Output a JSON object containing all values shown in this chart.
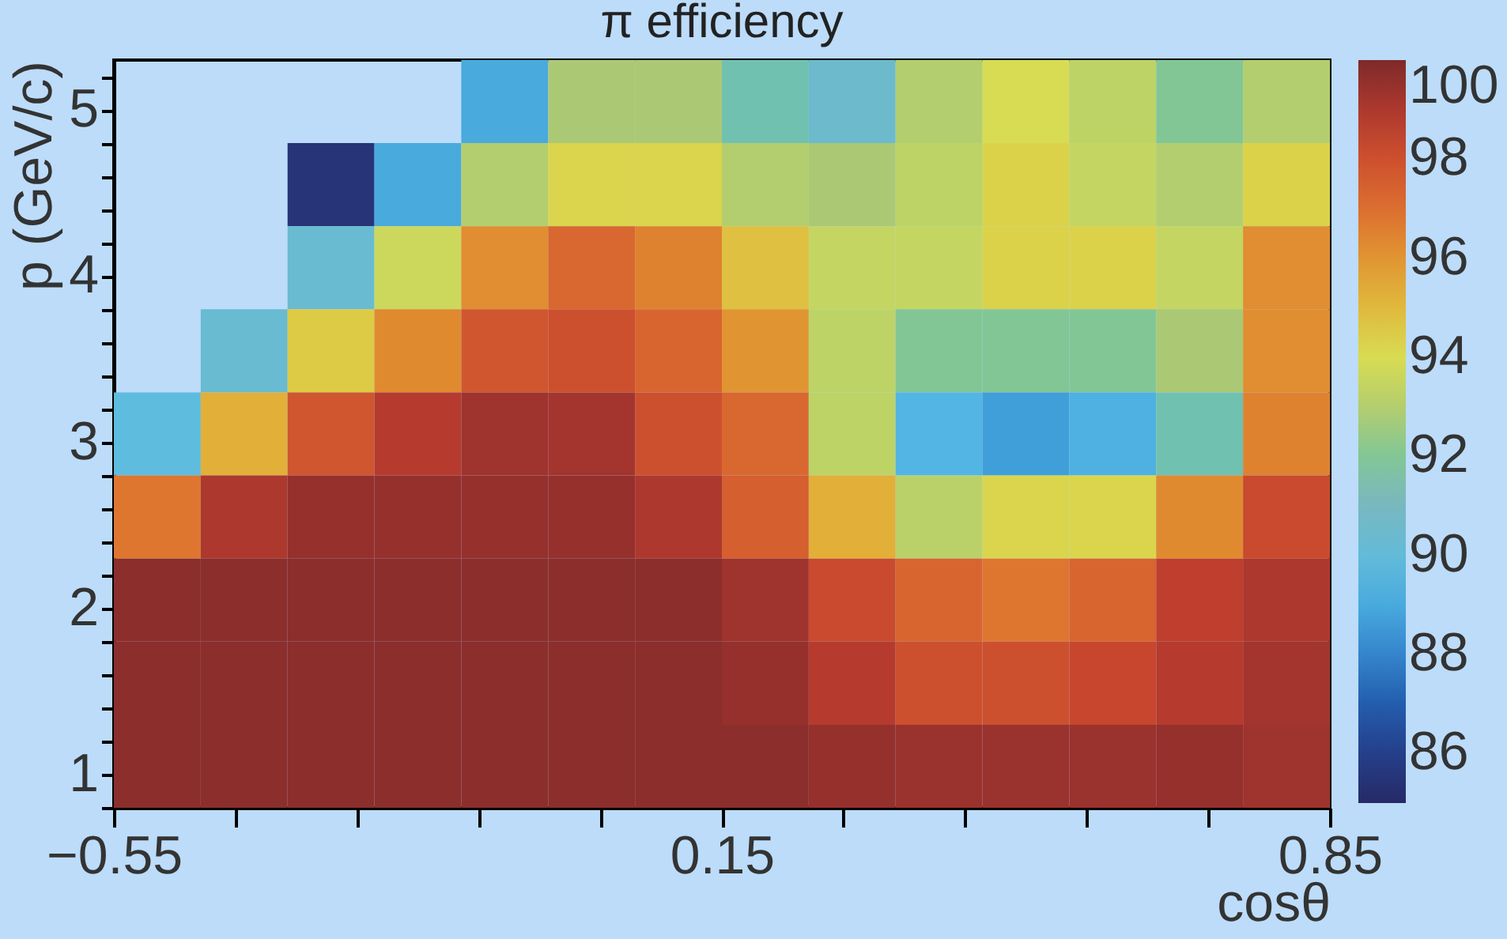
{
  "chart_data": {
    "type": "heatmap",
    "title": "π efficiency",
    "xlabel": "cosθ",
    "ylabel": "p (GeV/c)",
    "clabel": null,
    "x": [
      -0.5,
      -0.4,
      -0.3,
      -0.2,
      -0.1,
      0.0,
      0.1,
      0.2,
      0.3,
      0.4,
      0.5,
      0.6,
      0.7,
      0.8
    ],
    "y": [
      5.05,
      4.55,
      4.05,
      3.55,
      3.05,
      2.55,
      2.05,
      1.55,
      1.05
    ],
    "xlim": [
      -0.55,
      0.85
    ],
    "ylim": [
      0.8,
      5.3
    ],
    "xticks": [
      {
        "value": -0.55,
        "label": "−0.55"
      },
      {
        "value": -0.41,
        "label": null
      },
      {
        "value": -0.27,
        "label": null
      },
      {
        "value": -0.13,
        "label": null
      },
      {
        "value": 0.01,
        "label": null
      },
      {
        "value": 0.15,
        "label": "0.15"
      },
      {
        "value": 0.29,
        "label": null
      },
      {
        "value": 0.43,
        "label": null
      },
      {
        "value": 0.57,
        "label": null
      },
      {
        "value": 0.71,
        "label": null
      },
      {
        "value": 0.85,
        "label": "0.85"
      }
    ],
    "yticks": [
      {
        "value": 0.8,
        "label": null
      },
      1,
      {
        "value": 1.2,
        "label": null
      },
      {
        "value": 1.4,
        "label": null
      },
      {
        "value": 1.6,
        "label": null
      },
      {
        "value": 1.8,
        "label": null
      },
      2,
      {
        "value": 2.2,
        "label": null
      },
      {
        "value": 2.4,
        "label": null
      },
      {
        "value": 2.6,
        "label": null
      },
      {
        "value": 2.8,
        "label": null
      },
      3,
      {
        "value": 3.2,
        "label": null
      },
      {
        "value": 3.4,
        "label": null
      },
      {
        "value": 3.6,
        "label": null
      },
      {
        "value": 3.8,
        "label": null
      },
      4,
      {
        "value": 4.2,
        "label": null
      },
      {
        "value": 4.4,
        "label": null
      },
      {
        "value": 4.6,
        "label": null
      },
      {
        "value": 4.8,
        "label": null
      },
      5,
      {
        "value": 5.2,
        "label": null
      }
    ],
    "clim": [
      85,
      100
    ],
    "cticks": [
      86,
      88,
      90,
      92,
      94,
      96,
      98,
      100
    ],
    "cells": [
      [
        null,
        null,
        null,
        null,
        89,
        92.7,
        92.7,
        91.5,
        90.5,
        93,
        94,
        93.3,
        92,
        93
      ],
      [
        null,
        null,
        85.5,
        89,
        93,
        94.2,
        94.2,
        93,
        92.7,
        93.3,
        94.3,
        93.5,
        93,
        94.3
      ],
      [
        null,
        null,
        90.3,
        93.7,
        96.2,
        97.2,
        96.5,
        94.8,
        93.5,
        93.5,
        94.3,
        94.3,
        93.5,
        96.2
      ],
      [
        null,
        90.3,
        94.5,
        96.3,
        97.8,
        98,
        97.3,
        96,
        93.3,
        92,
        92,
        92,
        92.7,
        96.2
      ],
      [
        89.8,
        95.3,
        97.8,
        98.8,
        99.3,
        99.2,
        98,
        97.2,
        93.3,
        89.3,
        88.7,
        89.2,
        91.5,
        96.5
      ],
      [
        96.8,
        99,
        99.5,
        99.5,
        99.5,
        99.5,
        99,
        97.5,
        95.3,
        93.2,
        94.2,
        94.2,
        96.3,
        98.2
      ],
      [
        99.7,
        99.7,
        99.7,
        99.7,
        99.7,
        99.7,
        99.7,
        99.3,
        98.2,
        97.3,
        96.8,
        97.3,
        98.6,
        99
      ],
      [
        99.7,
        99.7,
        99.7,
        99.7,
        99.7,
        99.7,
        99.7,
        99.5,
        98.8,
        98,
        98,
        98.3,
        98.8,
        99.2
      ],
      [
        99.7,
        99.7,
        99.7,
        99.7,
        99.7,
        99.7,
        99.7,
        99.7,
        99.5,
        99.4,
        99.4,
        99.4,
        99.5,
        99.3
      ]
    ]
  }
}
